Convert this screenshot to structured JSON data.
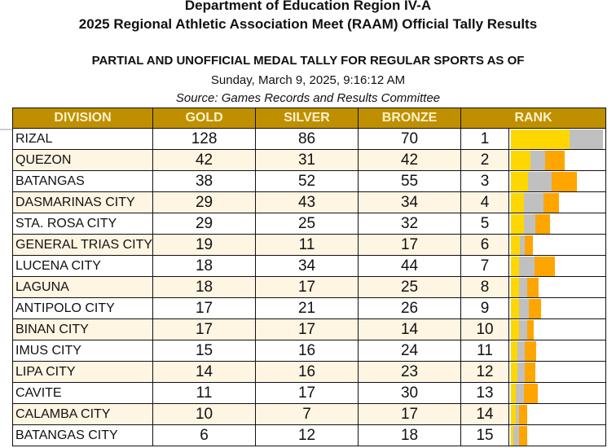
{
  "header": {
    "line1": "Department of Education Region IV-A",
    "line2": "2025 Regional Athletic Association Meet (RAAM) Official Tally Results",
    "subtitle": "PARTIAL AND UNOFFICIAL MEDAL TALLY FOR REGULAR SPORTS AS OF",
    "timestamp": "Sunday, March 9, 2025, 9:16:12 AM",
    "source": "Source: Games Records and Results Committee"
  },
  "colors": {
    "header_bg": "#bf8f00",
    "header_text": "#fff2cc",
    "alt_row": "#fff5e3",
    "gold_bar": "#ffd700",
    "silver_bar": "#c0c0c0",
    "bronze_bar": "#ffa500"
  },
  "table": {
    "columns": [
      "DIVISION",
      "GOLD",
      "SILVER",
      "BRONZE",
      "RANK"
    ],
    "rows": [
      {
        "division": "RIZAL",
        "gold": "128",
        "silver": "86",
        "bronze": "70",
        "rank": "1"
      },
      {
        "division": "QUEZON",
        "gold": "42",
        "silver": "31",
        "bronze": "42",
        "rank": "2"
      },
      {
        "division": "BATANGAS",
        "gold": "38",
        "silver": "52",
        "bronze": "55",
        "rank": "3"
      },
      {
        "division": "DASMARINAS CITY",
        "gold": "29",
        "silver": "43",
        "bronze": "34",
        "rank": "4"
      },
      {
        "division": "STA. ROSA CITY",
        "gold": "29",
        "silver": "25",
        "bronze": "32",
        "rank": "5"
      },
      {
        "division": "GENERAL TRIAS CITY",
        "gold": "19",
        "silver": "11",
        "bronze": "17",
        "rank": "6"
      },
      {
        "division": "LUCENA CITY",
        "gold": "18",
        "silver": "34",
        "bronze": "44",
        "rank": "7"
      },
      {
        "division": "LAGUNA",
        "gold": "18",
        "silver": "17",
        "bronze": "25",
        "rank": "8"
      },
      {
        "division": "ANTIPOLO CITY",
        "gold": "17",
        "silver": "21",
        "bronze": "26",
        "rank": "9"
      },
      {
        "division": "BINAN CITY",
        "gold": "17",
        "silver": "17",
        "bronze": "14",
        "rank": "10"
      },
      {
        "division": "IMUS CITY",
        "gold": "15",
        "silver": "16",
        "bronze": "24",
        "rank": "11"
      },
      {
        "division": "LIPA CITY",
        "gold": "14",
        "silver": "16",
        "bronze": "23",
        "rank": "12"
      },
      {
        "division": "CAVITE",
        "gold": "11",
        "silver": "17",
        "bronze": "30",
        "rank": "13"
      },
      {
        "division": "CALAMBA CITY",
        "gold": "10",
        "silver": "7",
        "bronze": "17",
        "rank": "14"
      },
      {
        "division": "BATANGAS CITY",
        "gold": "6",
        "silver": "12",
        "bronze": "18",
        "rank": "15"
      }
    ]
  }
}
